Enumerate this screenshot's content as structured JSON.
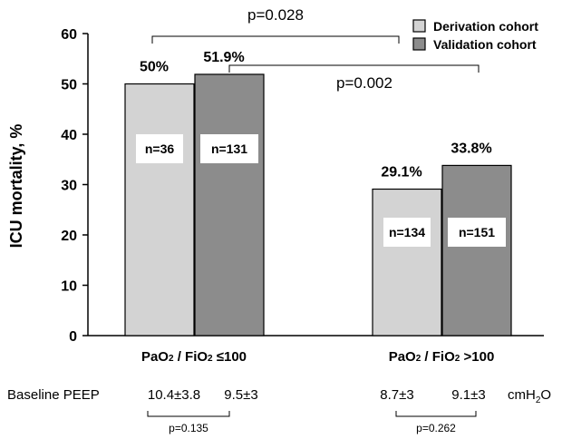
{
  "chart_data": {
    "type": "bar",
    "ylabel": "ICU mortality, %",
    "ylim": [
      0,
      60
    ],
    "yticks": [
      "0",
      "10",
      "20",
      "30",
      "40",
      "50",
      "60"
    ],
    "grid": false,
    "legend_position": "top-right",
    "groups": [
      {
        "label_main": "PaO",
        "label_sub1": "2",
        "label_mid": " / FiO",
        "label_sub2": "2",
        "label_tail": " ≤100",
        "bars": [
          {
            "series": "Derivation cohort",
            "value": 50.0,
            "value_label": "50%",
            "n_label": "n=36"
          },
          {
            "series": "Validation cohort",
            "value": 51.9,
            "value_label": "51.9%",
            "n_label": "n=131"
          }
        ],
        "peep": [
          "10.4±3.8",
          "9.5±3"
        ],
        "peep_p": "p=0.135"
      },
      {
        "label_main": "PaO",
        "label_sub1": "2",
        "label_mid": " / FiO",
        "label_sub2": "2",
        "label_tail": " >100",
        "bars": [
          {
            "series": "Derivation cohort",
            "value": 29.1,
            "value_label": "29.1%",
            "n_label": "n=134"
          },
          {
            "series": "Validation cohort",
            "value": 33.8,
            "value_label": "33.8%",
            "n_label": "n=151"
          }
        ],
        "peep": [
          "8.7±3",
          "9.1±3"
        ],
        "peep_p": "p=0.262"
      }
    ],
    "series": [
      {
        "name": "Derivation cohort",
        "color": "#d3d3d3"
      },
      {
        "name": "Validation cohort",
        "color": "#8c8c8c"
      }
    ],
    "comparisons": [
      {
        "label": "p=0.028"
      },
      {
        "label": "p=0.002"
      }
    ],
    "peep_row_label": "Baseline PEEP",
    "peep_unit_main": "cmH",
    "peep_unit_sub": "2",
    "peep_unit_tail": "O"
  }
}
